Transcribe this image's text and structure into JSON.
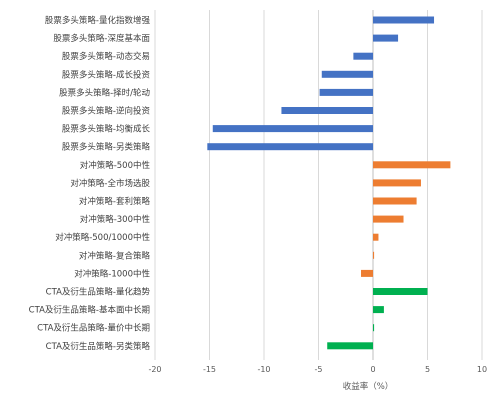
{
  "chart_data": {
    "type": "bar",
    "orientation": "horizontal",
    "title": "",
    "xlabel": "收益率（%）",
    "ylabel": "",
    "xlim": [
      -20,
      10
    ],
    "xticks": [
      -20,
      -15,
      -10,
      -5,
      0,
      5,
      10
    ],
    "grid": true,
    "legend": "none",
    "categories": [
      "股票多头策略-量化指数增强",
      "股票多头策略-深度基本面",
      "股票多头策略-动态交易",
      "股票多头策略-成长投资",
      "股票多头策略-择时/轮动",
      "股票多头策略-逆向投资",
      "股票多头策略-均衡成长",
      "股票多头策略-另类策略",
      "对冲策略-500中性",
      "对冲策略-全市场选股",
      "对冲策略-套利策略",
      "对冲策略-300中性",
      "对冲策略-500/1000中性",
      "对冲策略-复合策略",
      "对冲策略-1000中性",
      "CTA及衍生品策略-量化趋势",
      "CTA及衍生品策略-基本面中长期",
      "CTA及衍生品策略-量价中长期",
      "CTA及衍生品策略-另类策略"
    ],
    "values": [
      5.6,
      2.3,
      -1.8,
      -4.7,
      -4.9,
      -8.4,
      -14.7,
      -15.2,
      7.1,
      4.4,
      4.0,
      2.8,
      0.5,
      0.1,
      -1.1,
      5.0,
      1.0,
      0.1,
      -4.2
    ],
    "groups": [
      {
        "color": "#4472c4",
        "start": 0,
        "end": 7
      },
      {
        "color": "#ed7d31",
        "start": 8,
        "end": 14
      },
      {
        "color": "#00b050",
        "start": 15,
        "end": 18
      }
    ]
  }
}
